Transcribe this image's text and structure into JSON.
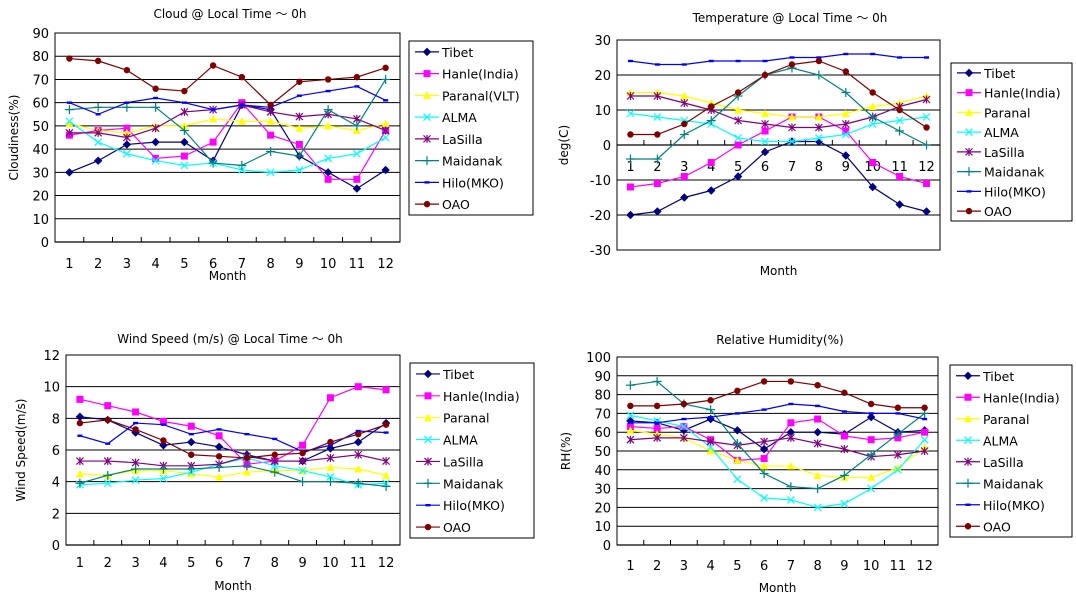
{
  "chart_data": [
    {
      "id": "cloud",
      "type": "line",
      "title": "Cloud @ Local Time 〜 0h",
      "xlabel": "Month",
      "ylabel": "Cloudiness(%)",
      "ylim": [
        0,
        90
      ],
      "yticks": [
        0,
        10,
        20,
        30,
        40,
        50,
        60,
        70,
        80,
        90
      ],
      "grid": true,
      "legend": "right",
      "categories": [
        "1",
        "2",
        "3",
        "4",
        "5",
        "6",
        "7",
        "8",
        "9",
        "10",
        "11",
        "12"
      ],
      "series": [
        {
          "name": "Tibet",
          "color": "#000080",
          "marker": "diamond",
          "values": [
            30,
            35,
            42,
            43,
            43,
            35,
            59,
            57,
            37,
            30,
            23,
            31
          ]
        },
        {
          "name": "Hanle(India)",
          "color": "#FF00FF",
          "marker": "square",
          "values": [
            46,
            48,
            49,
            36,
            37,
            43,
            60,
            46,
            42,
            27,
            27,
            48
          ]
        },
        {
          "name": "Paranal(VLT)",
          "color": "#FFFF00",
          "marker": "triangle",
          "values": [
            51,
            48,
            47,
            50,
            50,
            53,
            52,
            52,
            49,
            50,
            48,
            51
          ]
        },
        {
          "name": "ALMA",
          "color": "#00FFFF",
          "marker": "x",
          "values": [
            52,
            43,
            38,
            35,
            33,
            34,
            31,
            30,
            31,
            36,
            38,
            45
          ]
        },
        {
          "name": "LaSilla",
          "color": "#800080",
          "marker": "star",
          "values": [
            47,
            47,
            45,
            49,
            56,
            57,
            59,
            56,
            54,
            55,
            53,
            48
          ]
        },
        {
          "name": "Maidanak",
          "color": "#008080",
          "marker": "plus",
          "values": [
            57,
            58,
            58,
            58,
            48,
            34,
            33,
            39,
            37,
            57,
            50,
            70
          ]
        },
        {
          "name": "Hilo(MKO)",
          "color": "#0000FF",
          "marker": "dash",
          "values": [
            60,
            55,
            60,
            62,
            60,
            57,
            59,
            58,
            63,
            65,
            67,
            61
          ]
        },
        {
          "name": "OAO",
          "color": "#800000",
          "marker": "circle",
          "values": [
            79,
            78,
            74,
            66,
            65,
            76,
            71,
            59,
            69,
            70,
            71,
            75
          ]
        }
      ]
    },
    {
      "id": "temperature",
      "type": "line",
      "title": "Temperature @ Local Time 〜 0h",
      "xlabel": "Month",
      "ylabel": "deg(C)",
      "ylim": [
        -30,
        30
      ],
      "yticks": [
        -30,
        -20,
        -10,
        0,
        10,
        20,
        30
      ],
      "grid": true,
      "legend": "right",
      "categories": [
        "1",
        "2",
        "3",
        "4",
        "5",
        "6",
        "7",
        "8",
        "9",
        "10",
        "11",
        "12"
      ],
      "series": [
        {
          "name": "Tibet",
          "color": "#000080",
          "marker": "diamond",
          "values": [
            -20,
            -19,
            -15,
            -13,
            -9,
            -2,
            1,
            1,
            -3,
            -12,
            -17,
            -19
          ]
        },
        {
          "name": "Hanle(India)",
          "color": "#FF00FF",
          "marker": "square",
          "values": [
            -12,
            -11,
            -9,
            -5,
            0,
            4,
            8,
            8,
            4,
            -5,
            -9,
            -11
          ]
        },
        {
          "name": "Paranal",
          "color": "#FFFF00",
          "marker": "triangle",
          "values": [
            15,
            15,
            14,
            12,
            10,
            9,
            8,
            8,
            9,
            11,
            12,
            14
          ]
        },
        {
          "name": "ALMA",
          "color": "#00FFFF",
          "marker": "x",
          "values": [
            9,
            8,
            7,
            6,
            2,
            1,
            1,
            2,
            3,
            6,
            7,
            8
          ]
        },
        {
          "name": "LaSilla",
          "color": "#800080",
          "marker": "star",
          "values": [
            14,
            14,
            12,
            10,
            7,
            6,
            5,
            5,
            6,
            8,
            11,
            13
          ]
        },
        {
          "name": "Maidanak",
          "color": "#008080",
          "marker": "plus",
          "values": [
            -4,
            -4,
            3,
            7,
            14,
            20,
            22,
            20,
            15,
            8,
            4,
            0
          ]
        },
        {
          "name": "Hilo(MKO)",
          "color": "#0000FF",
          "marker": "dash",
          "values": [
            24,
            23,
            23,
            24,
            24,
            24,
            25,
            25,
            26,
            26,
            25,
            25
          ]
        },
        {
          "name": "OAO",
          "color": "#800000",
          "marker": "circle",
          "values": [
            3,
            3,
            6,
            11,
            15,
            20,
            23,
            24,
            21,
            15,
            10,
            5
          ]
        }
      ]
    },
    {
      "id": "wind",
      "type": "line",
      "title": "Wind Speed (m/s) @ Local Time 〜 0h",
      "xlabel": "Month",
      "ylabel": "Wind Speed(m/s)",
      "ylim": [
        0,
        12
      ],
      "yticks": [
        0,
        2,
        4,
        6,
        8,
        10,
        12
      ],
      "grid": true,
      "legend": "right",
      "categories": [
        "1",
        "2",
        "3",
        "4",
        "5",
        "6",
        "7",
        "8",
        "9",
        "10",
        "11",
        "12"
      ],
      "series": [
        {
          "name": "Tibet",
          "color": "#000080",
          "marker": "diamond",
          "values": [
            8.1,
            7.9,
            7.1,
            6.3,
            6.5,
            6.2,
            5.7,
            5.3,
            5.3,
            6.1,
            6.5,
            7.7
          ]
        },
        {
          "name": "Hanle(India)",
          "color": "#FF00FF",
          "marker": "square",
          "values": [
            9.2,
            8.8,
            8.4,
            7.8,
            7.5,
            6.9,
            5.1,
            5.3,
            6.3,
            9.3,
            10.0,
            9.8
          ]
        },
        {
          "name": "Paranal",
          "color": "#FFFF00",
          "marker": "triangle",
          "values": [
            4.5,
            4.4,
            4.7,
            4.7,
            4.5,
            4.3,
            4.6,
            4.7,
            4.7,
            4.9,
            4.8,
            4.4
          ]
        },
        {
          "name": "ALMA",
          "color": "#00FFFF",
          "marker": "x",
          "values": [
            3.8,
            3.9,
            4.1,
            4.2,
            4.6,
            5.1,
            5.5,
            5.0,
            4.7,
            4.3,
            3.8,
            3.9
          ]
        },
        {
          "name": "LaSilla",
          "color": "#800080",
          "marker": "star",
          "values": [
            5.3,
            5.3,
            5.2,
            5.0,
            5.0,
            5.1,
            5.6,
            5.3,
            5.3,
            5.5,
            5.7,
            5.3
          ]
        },
        {
          "name": "Maidanak",
          "color": "#008080",
          "marker": "plus",
          "values": [
            3.9,
            4.4,
            4.8,
            4.8,
            4.8,
            4.9,
            5.0,
            4.6,
            4.0,
            4.0,
            3.9,
            3.7
          ]
        },
        {
          "name": "Hilo(MKO)",
          "color": "#0000FF",
          "marker": "dash",
          "values": [
            6.9,
            6.4,
            7.7,
            7.6,
            7.0,
            7.3,
            7.0,
            6.7,
            5.9,
            6.3,
            7.2,
            7.1
          ]
        },
        {
          "name": "OAO",
          "color": "#800000",
          "marker": "circle",
          "values": [
            7.7,
            7.9,
            7.3,
            6.6,
            5.7,
            5.6,
            5.5,
            5.7,
            5.8,
            6.5,
            7.0,
            7.6
          ]
        }
      ]
    },
    {
      "id": "humidity",
      "type": "line",
      "title": "Relative Humidity(%)",
      "xlabel": "Month",
      "ylabel": "RH(%)",
      "ylim": [
        0,
        100
      ],
      "yticks": [
        0,
        10,
        20,
        30,
        40,
        50,
        60,
        70,
        80,
        90,
        100
      ],
      "grid": true,
      "legend": "right",
      "categories": [
        "1",
        "2",
        "3",
        "4",
        "5",
        "6",
        "7",
        "8",
        "9",
        "10",
        "11",
        "12"
      ],
      "series": [
        {
          "name": "Tibet",
          "color": "#000080",
          "marker": "diamond",
          "values": [
            66,
            65,
            61,
            67,
            61,
            51,
            60,
            60,
            59,
            68,
            60,
            61
          ]
        },
        {
          "name": "Hanle(India)",
          "color": "#FF00FF",
          "marker": "square",
          "values": [
            63,
            62,
            63,
            56,
            45,
            46,
            65,
            67,
            58,
            56,
            57,
            60
          ]
        },
        {
          "name": "Paranal",
          "color": "#FFFF00",
          "marker": "triangle",
          "values": [
            61,
            59,
            57,
            50,
            45,
            42,
            42,
            37,
            36,
            36,
            41,
            52
          ]
        },
        {
          "name": "ALMA",
          "color": "#00FFFF",
          "marker": "x",
          "values": [
            69,
            66,
            63,
            52,
            35,
            25,
            24,
            20,
            22,
            30,
            40,
            56
          ]
        },
        {
          "name": "LaSilla",
          "color": "#800080",
          "marker": "star",
          "values": [
            56,
            57,
            57,
            55,
            53,
            55,
            57,
            54,
            51,
            47,
            48,
            50
          ]
        },
        {
          "name": "Maidanak",
          "color": "#008080",
          "marker": "plus",
          "values": [
            85,
            87,
            75,
            72,
            54,
            38,
            31,
            30,
            37,
            48,
            59,
            70
          ]
        },
        {
          "name": "Hilo(MKO)",
          "color": "#0000FF",
          "marker": "dash",
          "values": [
            65,
            65,
            67,
            68,
            70,
            72,
            75,
            74,
            71,
            70,
            70,
            67
          ]
        },
        {
          "name": "OAO",
          "color": "#800000",
          "marker": "circle",
          "values": [
            74,
            74,
            75,
            77,
            82,
            87,
            87,
            85,
            81,
            75,
            73,
            73
          ]
        }
      ]
    }
  ]
}
